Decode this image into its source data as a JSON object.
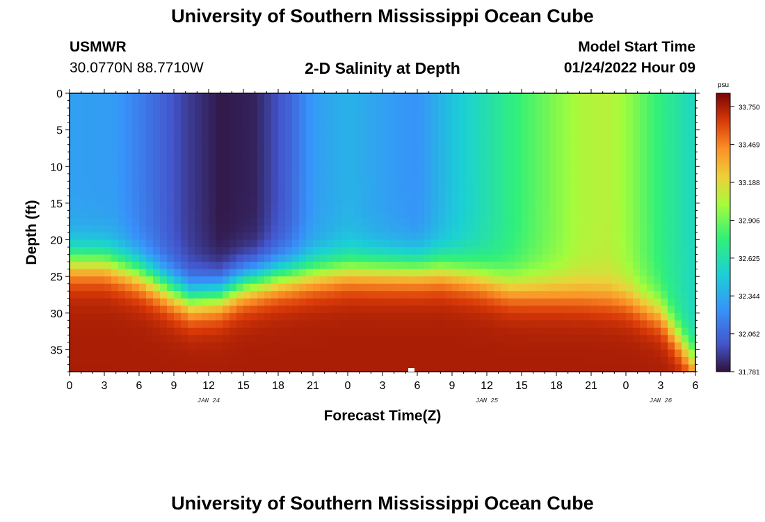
{
  "page": {
    "title_top": "University of Southern Mississippi Ocean Cube",
    "title_bottom": "University of Southern Mississippi Ocean Cube",
    "station": "USMWR",
    "coords": "30.0770N  88.7710W",
    "plot_title": "2-D Salinity at Depth",
    "model_label": "Model Start Time",
    "model_time": "01/24/2022 Hour 09"
  },
  "chart_data": {
    "type": "heatmap",
    "title": "2-D Salinity at Depth",
    "xlabel": "Forecast Time(Z)",
    "ylabel": "Depth (ft)",
    "x_hours_from_jan24_00Z": [
      0,
      54
    ],
    "y_depth_ft": [
      0,
      38
    ],
    "x_tick_labels": [
      "0",
      "3",
      "6",
      "9",
      "12",
      "15",
      "18",
      "21",
      "0",
      "3",
      "6",
      "9",
      "12",
      "15",
      "18",
      "21",
      "0",
      "3",
      "6"
    ],
    "x_date_labels": [
      {
        "label": "JAN 24",
        "hour": 12
      },
      {
        "label": "JAN 25",
        "hour": 36
      },
      {
        "label": "JAN 26",
        "hour": 51
      }
    ],
    "y_ticks": [
      0,
      5,
      10,
      15,
      20,
      25,
      30,
      35
    ],
    "y_tick_labels": [
      "0",
      "5",
      "10",
      "15",
      "20",
      "25",
      "30",
      "35"
    ],
    "colorbar": {
      "unit": "psu",
      "min": 31.781,
      "max": 33.85,
      "tick_labels": [
        "33.750",
        "33.469",
        "33.188",
        "32.906",
        "32.625",
        "32.344",
        "32.062",
        "31.781"
      ],
      "tick_values": [
        33.75,
        33.469,
        33.188,
        32.906,
        32.625,
        32.344,
        32.062,
        31.781
      ]
    },
    "halocline_depth_ft_by_hour": [
      [
        0,
        23
      ],
      [
        3,
        23
      ],
      [
        6,
        24.5
      ],
      [
        9,
        27
      ],
      [
        10.5,
        28
      ],
      [
        13,
        27.5
      ],
      [
        15,
        26
      ],
      [
        18,
        25
      ],
      [
        21,
        24.5
      ],
      [
        24,
        24
      ],
      [
        27,
        24
      ],
      [
        32,
        24
      ],
      [
        35,
        25
      ],
      [
        38,
        26.5
      ],
      [
        42,
        27
      ],
      [
        48,
        28
      ],
      [
        51,
        30
      ],
      [
        54,
        37
      ]
    ],
    "surface_salinity_by_hour": [
      [
        0,
        32.3
      ],
      [
        4,
        32.28
      ],
      [
        7,
        32.1
      ],
      [
        10,
        31.92
      ],
      [
        13,
        31.8
      ],
      [
        16,
        31.83
      ],
      [
        19,
        32.05
      ],
      [
        21,
        32.28
      ],
      [
        24,
        32.38
      ],
      [
        27,
        32.3
      ],
      [
        30,
        32.24
      ],
      [
        33,
        32.45
      ],
      [
        36,
        32.62
      ],
      [
        40,
        32.85
      ],
      [
        44,
        33.05
      ],
      [
        46.5,
        33.08
      ],
      [
        48,
        33.0
      ],
      [
        51,
        32.75
      ],
      [
        54,
        32.55
      ]
    ],
    "bottom_salinity_psu": 33.75
  }
}
